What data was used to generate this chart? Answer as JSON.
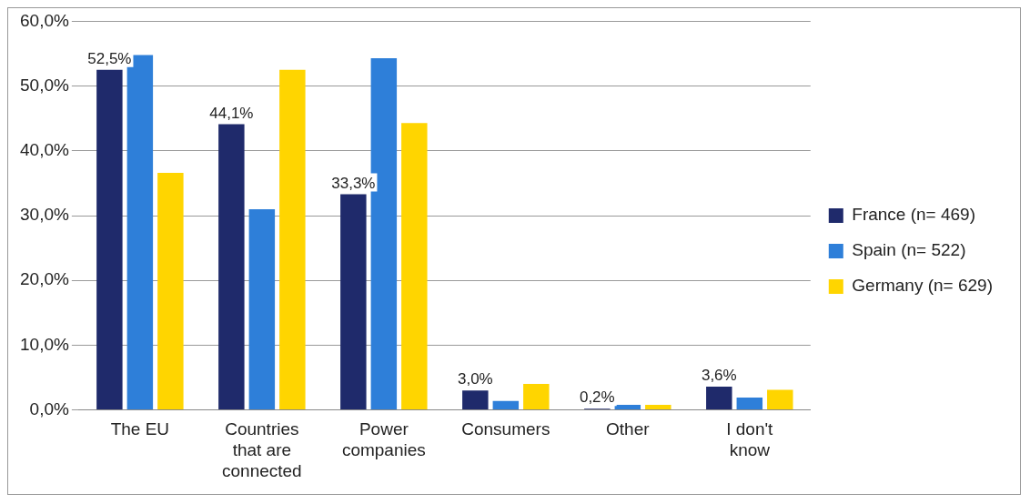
{
  "chart_data": {
    "type": "bar",
    "categories": [
      "The EU",
      "Countries that are connected",
      "Power companies",
      "Consumers",
      "Other",
      "I don't know"
    ],
    "series": [
      {
        "name": "France (n= 469)",
        "color": "#1f2a6b",
        "values": [
          52.5,
          44.1,
          33.3,
          3.0,
          0.2,
          3.6
        ],
        "value_labels": [
          "52,5%",
          "44,1%",
          "33,3%",
          "3,0%",
          "0,2%",
          "3,6%"
        ]
      },
      {
        "name": "Spain (n= 522)",
        "color": "#2e7fd9",
        "values": [
          54.8,
          31.0,
          54.3,
          1.4,
          0.8,
          1.9
        ]
      },
      {
        "name": "Germany (n= 629)",
        "color": "#ffd500",
        "values": [
          36.6,
          52.5,
          44.3,
          4.0,
          0.8,
          3.1
        ]
      }
    ],
    "ylim": [
      0,
      60
    ],
    "yticks": [
      {
        "value": 0,
        "label": "0,0%"
      },
      {
        "value": 10,
        "label": "10,0%"
      },
      {
        "value": 20,
        "label": "20,0%"
      },
      {
        "value": 30,
        "label": "30,0%"
      },
      {
        "value": 40,
        "label": "40,0%"
      },
      {
        "value": 50,
        "label": "50,0%"
      },
      {
        "value": 60,
        "label": "60,0%"
      }
    ],
    "grid": "y",
    "legend": "right"
  }
}
